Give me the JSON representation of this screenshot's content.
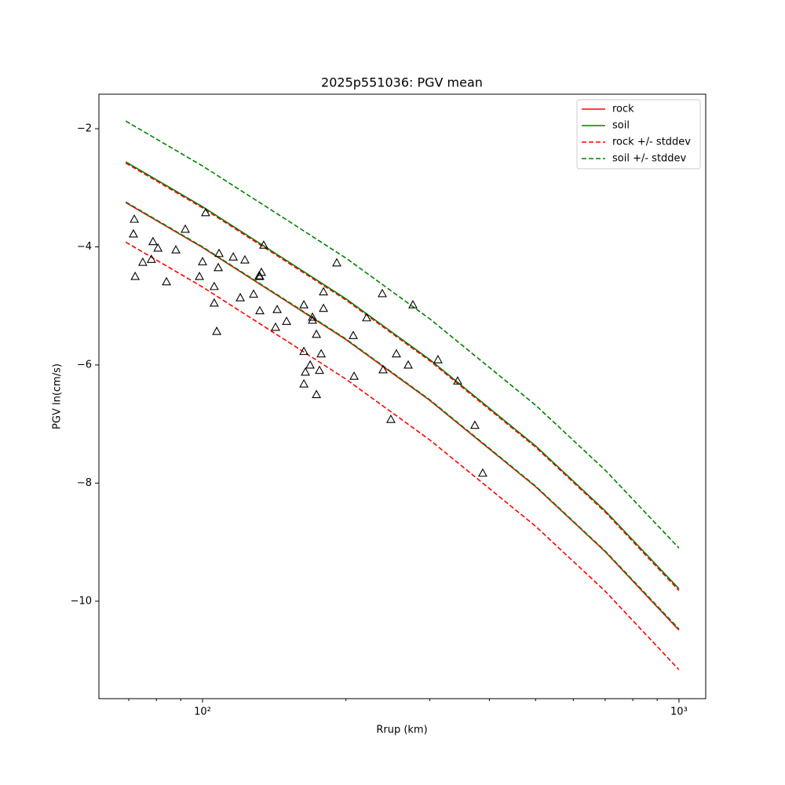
{
  "chart_data": {
    "type": "line",
    "title": "2025p551036: PGV mean",
    "x_label": "Rrup (km)",
    "y_label": "PGV ln(cm/s)",
    "xscale": "log",
    "xlim": [
      60.6,
      1138
    ],
    "ylim": [
      -11.65,
      -1.415
    ],
    "xticks": [
      {
        "value": 100,
        "label": "10²"
      },
      {
        "value": 1000,
        "label": "10³"
      }
    ],
    "xminorticks": [
      70,
      80,
      90,
      200,
      300,
      400,
      500,
      600,
      700,
      800,
      900
    ],
    "yticks": [
      {
        "value": -2,
        "label": "−2"
      },
      {
        "value": -4,
        "label": "−4"
      },
      {
        "value": -6,
        "label": "−6"
      },
      {
        "value": -8,
        "label": "−8"
      },
      {
        "value": -10,
        "label": "−10"
      }
    ],
    "legend": "upper right",
    "x": [
      69,
      100,
      150,
      200,
      300,
      500,
      700,
      1000
    ],
    "series": [
      {
        "name": "rock",
        "color": "#ff0000",
        "style": "solid",
        "values": [
          -3.25,
          -4.01,
          -4.92,
          -5.57,
          -6.6,
          -8.06,
          -9.16,
          -10.49
        ]
      },
      {
        "name": "soil",
        "color": "#008000",
        "style": "solid",
        "values": [
          -2.56,
          -3.32,
          -4.23,
          -4.88,
          -5.91,
          -7.37,
          -8.47,
          -9.79
        ]
      },
      {
        "name": "rock +/- stddev",
        "color": "#ff0000",
        "style": "dashed",
        "upper": [
          -2.58,
          -3.34,
          -4.25,
          -4.9,
          -5.93,
          -7.39,
          -8.49,
          -9.82
        ],
        "lower": [
          -3.92,
          -4.68,
          -5.59,
          -6.24,
          -7.27,
          -8.73,
          -9.83,
          -11.16
        ]
      },
      {
        "name": "soil +/- stddev",
        "color": "#008000",
        "style": "dashed",
        "upper": [
          -1.87,
          -2.63,
          -3.54,
          -4.19,
          -5.22,
          -6.68,
          -7.78,
          -9.1
        ],
        "lower": [
          -3.24,
          -4.0,
          -4.91,
          -5.56,
          -6.59,
          -8.05,
          -9.15,
          -10.47
        ]
      }
    ],
    "scatter": {
      "marker": "triangle",
      "color": "#000000",
      "x": [
        71.9,
        71.6,
        72.2,
        74.9,
        78.7,
        78.1,
        80.6,
        84.0,
        87.9,
        92.0,
        98.5,
        100,
        101.5,
        105.8,
        105.8,
        107.1,
        107.9,
        108.3,
        116.0,
        120.0,
        122.7,
        128.0,
        131.4,
        131.9,
        132.9,
        131.9,
        134.4,
        142.3,
        143.4,
        150.1,
        163.2,
        163.2,
        163.2,
        164.4,
        168.2,
        170.1,
        170.1,
        173.4,
        173.4,
        176.0,
        177.4,
        179.4,
        179.4,
        191.3,
        207.2,
        208.0,
        221.0,
        238.4,
        239.3,
        248.5,
        255.2,
        270.2,
        276.4,
        312.0,
        343.1,
        372.9,
        387.3
      ],
      "y": [
        -3.53,
        -3.78,
        -4.5,
        -4.26,
        -3.91,
        -4.21,
        -4.02,
        -4.59,
        -4.05,
        -3.7,
        -4.5,
        -4.25,
        -3.42,
        -4.67,
        -4.95,
        -5.43,
        -4.35,
        -4.11,
        -4.17,
        -4.86,
        -4.22,
        -4.8,
        -4.49,
        -4.5,
        -4.43,
        -5.08,
        -3.97,
        -5.36,
        -5.06,
        -5.26,
        -4.98,
        -5.77,
        -6.32,
        -6.12,
        -6.0,
        -5.19,
        -5.24,
        -5.48,
        -6.5,
        -6.09,
        -5.81,
        -4.76,
        -5.04,
        -4.27,
        -5.5,
        -6.19,
        -5.2,
        -4.79,
        -6.08,
        -6.92,
        -5.81,
        -6.0,
        -4.98,
        -5.91,
        -6.27,
        -7.02,
        -7.83
      ]
    }
  }
}
